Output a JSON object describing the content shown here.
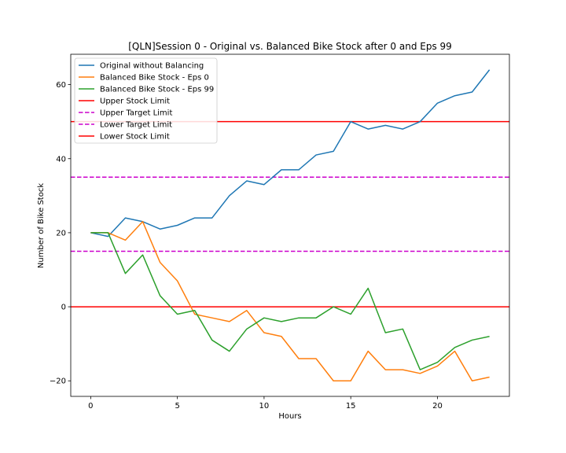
{
  "chart_data": {
    "type": "line",
    "title": "[QLN]Session 0 - Original vs. Balanced Bike Stock after 0 and Eps 99",
    "xlabel": "Hours",
    "ylabel": "Number of Bike Stock",
    "xlim": [
      -1.15,
      24.15
    ],
    "ylim": [
      -24.2,
      68.2
    ],
    "xticks": [
      0,
      5,
      10,
      15,
      20
    ],
    "yticks": [
      -20,
      0,
      20,
      40,
      60
    ],
    "legend_position": "upper-left",
    "x": [
      0,
      1,
      2,
      3,
      4,
      5,
      6,
      7,
      8,
      9,
      10,
      11,
      12,
      13,
      14,
      15,
      16,
      17,
      18,
      19,
      20,
      21,
      22,
      23
    ],
    "series": [
      {
        "name": "Original without Balancing",
        "color": "#1f77b4",
        "values": [
          20,
          19,
          24,
          23,
          21,
          22,
          24,
          24,
          30,
          34,
          33,
          37,
          37,
          41,
          42,
          50,
          48,
          49,
          48,
          50,
          55,
          57,
          58,
          64
        ]
      },
      {
        "name": "Balanced Bike Stock - Eps 0",
        "color": "#ff7f0e",
        "values": [
          20,
          20,
          18,
          23,
          12,
          7,
          -2,
          -3,
          -4,
          -1,
          -7,
          -8,
          -14,
          -14,
          -20,
          -20,
          -12,
          -17,
          -17,
          -18,
          -16,
          -12,
          -20,
          -19
        ]
      },
      {
        "name": "Balanced Bike Stock - Eps 99",
        "color": "#2ca02c",
        "values": [
          20,
          20,
          9,
          14,
          3,
          -2,
          -1,
          -9,
          -12,
          -6,
          -3,
          -4,
          -3,
          -3,
          0,
          -2,
          5,
          -7,
          -6,
          -17,
          -15,
          -11,
          -9,
          -8
        ]
      }
    ],
    "hlines": [
      {
        "name": "Upper Stock Limit",
        "y": 50,
        "color": "#ff0000",
        "style": "solid"
      },
      {
        "name": "Upper Target Limit",
        "y": 35,
        "color": "#cc00cc",
        "style": "dashed"
      },
      {
        "name": "Lower Target Limit",
        "y": 15,
        "color": "#cc00cc",
        "style": "dashed"
      },
      {
        "name": "Lower Stock Limit",
        "y": 0,
        "color": "#ff0000",
        "style": "solid"
      }
    ]
  }
}
